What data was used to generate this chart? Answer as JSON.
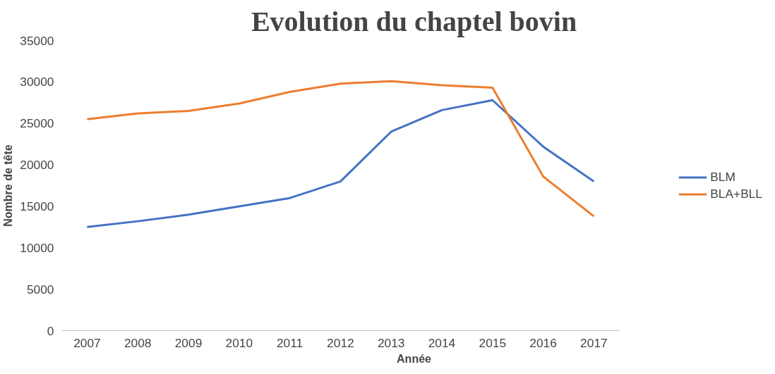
{
  "chart_data": {
    "type": "line",
    "title": "Evolution du chaptel bovin",
    "xlabel": "Année",
    "ylabel": "Nombre de tête",
    "categories": [
      "2007",
      "2008",
      "2009",
      "2010",
      "2011",
      "2012",
      "2013",
      "2014",
      "2015",
      "2016",
      "2017"
    ],
    "series": [
      {
        "name": "BLM",
        "color": "#4472c4",
        "values": [
          12500,
          13200,
          14000,
          15000,
          16000,
          18000,
          24000,
          26600,
          27800,
          22200,
          18000
        ]
      },
      {
        "name": "BLA+BLL",
        "color": "#ed7d31",
        "values": [
          25500,
          26200,
          26500,
          27400,
          28800,
          29800,
          30100,
          29600,
          29300,
          18600,
          13800
        ]
      }
    ],
    "ylim": [
      0,
      35000
    ],
    "yticks": [
      0,
      5000,
      10000,
      15000,
      20000,
      25000,
      30000,
      35000
    ],
    "grid": false,
    "legend": "right",
    "line_style": "solid",
    "marker": "none"
  }
}
